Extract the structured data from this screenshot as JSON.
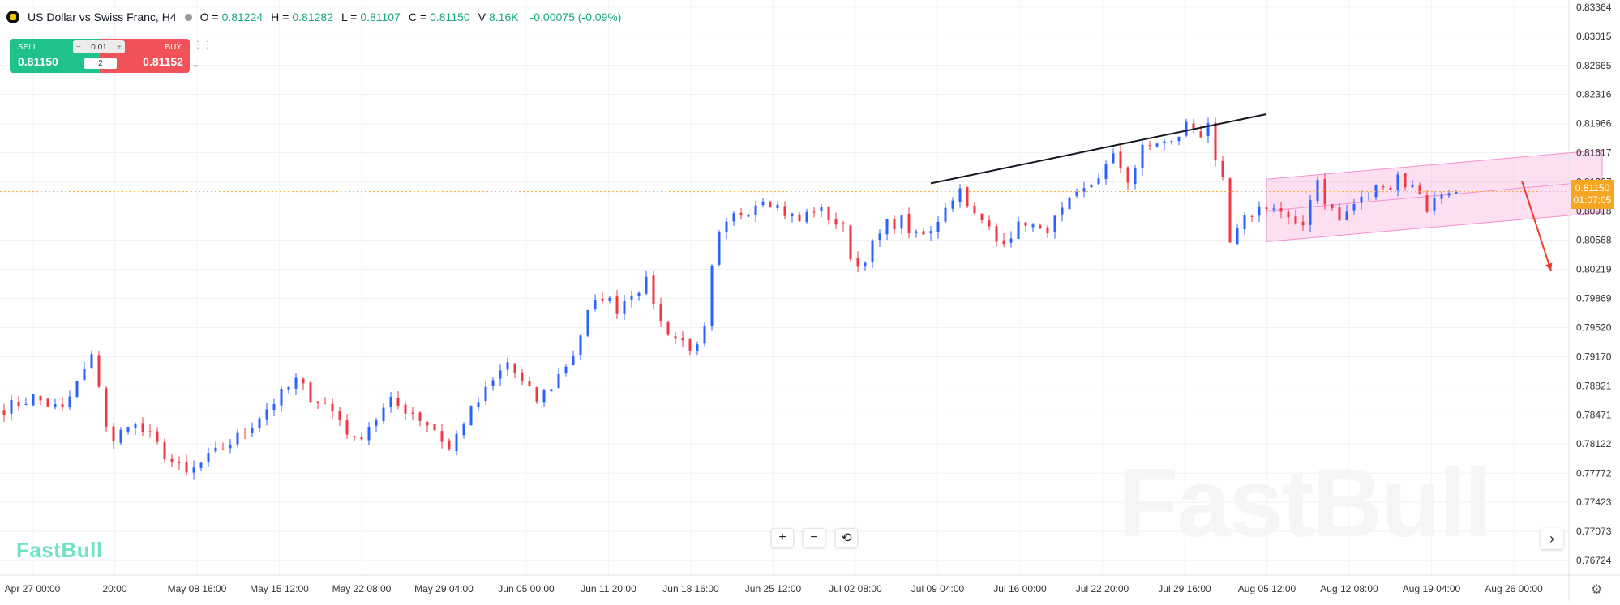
{
  "header": {
    "symbol": "US Dollar vs Swiss Franc, H4",
    "ohlc": [
      {
        "label": "O =",
        "value": "0.81224"
      },
      {
        "label": "H =",
        "value": "0.81282"
      },
      {
        "label": "L =",
        "value": "0.81107"
      },
      {
        "label": "C =",
        "value": "0.81150"
      },
      {
        "label": "V",
        "value": "8.16K"
      }
    ],
    "change": "-0.00075 (-0.09%)"
  },
  "trade_panel": {
    "sell_label": "SELL",
    "sell_price": "0.81150",
    "buy_label": "BUY",
    "buy_price": "0.81152",
    "quantity": "0.01",
    "leverage": "2",
    "minus": "−",
    "plus": "+"
  },
  "last_price": {
    "price": "0.81150",
    "countdown": "01:07:05"
  },
  "brand": {
    "logo": "FastBull",
    "watermark": "FastBull"
  },
  "toolbar": {
    "zoom_in": "+",
    "zoom_out": "−",
    "reset": "⟲",
    "next": "›",
    "settings": "⚙"
  },
  "colors": {
    "up": "#2962ff",
    "down": "#f23645",
    "channel": "#f48fd1",
    "trendline": "#131722",
    "arrow": "#ef3b2c",
    "last_price": "#f5a623"
  },
  "chart_data": {
    "type": "candlestick",
    "title": "US Dollar vs Swiss Franc, H4",
    "ylim": [
      0.7655,
      0.8345
    ],
    "y_ticks": [
      "0.83364",
      "0.83015",
      "0.82665",
      "0.82316",
      "0.81966",
      "0.81617",
      "0.81267",
      "0.80918",
      "0.80568",
      "0.80219",
      "0.79869",
      "0.79520",
      "0.79170",
      "0.78821",
      "0.78471",
      "0.78122",
      "0.77772",
      "0.77423",
      "0.77073",
      "0.76724"
    ],
    "x_ticks": [
      "Apr 27 00:00",
      "20:00",
      "May 08 16:00",
      "May 15 12:00",
      "May 22 08:00",
      "May 29 04:00",
      "Jun 05 00:00",
      "Jun 11 20:00",
      "Jun 18 16:00",
      "Jun 25 12:00",
      "Jul 02 08:00",
      "Jul 09 04:00",
      "Jul 16 00:00",
      "Jul 22 20:00",
      "Jul 29 16:00",
      "Aug 05 12:00",
      "Aug 12 08:00",
      "Aug 19 04:00",
      "Aug 26 00:00"
    ],
    "last_price": 0.8115,
    "price_path": [
      [
        0,
        0.7855
      ],
      [
        4,
        0.7868
      ],
      [
        8,
        0.7852
      ],
      [
        10,
        0.7885
      ],
      [
        12,
        0.7915
      ],
      [
        13,
        0.7885
      ],
      [
        14,
        0.7835
      ],
      [
        15,
        0.7812
      ],
      [
        17,
        0.784
      ],
      [
        20,
        0.782
      ],
      [
        23,
        0.779
      ],
      [
        25,
        0.7775
      ],
      [
        28,
        0.7795
      ],
      [
        32,
        0.782
      ],
      [
        36,
        0.7855
      ],
      [
        40,
        0.7888
      ],
      [
        42,
        0.787
      ],
      [
        44,
        0.786
      ],
      [
        46,
        0.7842
      ],
      [
        48,
        0.7815
      ],
      [
        50,
        0.7835
      ],
      [
        53,
        0.7862
      ],
      [
        56,
        0.785
      ],
      [
        59,
        0.783
      ],
      [
        61,
        0.7805
      ],
      [
        63,
        0.784
      ],
      [
        66,
        0.7875
      ],
      [
        69,
        0.791
      ],
      [
        71,
        0.7885
      ],
      [
        73,
        0.7865
      ],
      [
        75,
        0.7882
      ],
      [
        78,
        0.792
      ],
      [
        80,
        0.7968
      ],
      [
        82,
        0.799
      ],
      [
        84,
        0.7975
      ],
      [
        86,
        0.7995
      ],
      [
        88,
        0.8005
      ],
      [
        89,
        0.7985
      ],
      [
        90,
        0.7958
      ],
      [
        92,
        0.794
      ],
      [
        94,
        0.793
      ],
      [
        95,
        0.7925
      ],
      [
        96,
        0.7948
      ],
      [
        97,
        0.802
      ],
      [
        98,
        0.806
      ],
      [
        100,
        0.8085
      ],
      [
        102,
        0.8095
      ],
      [
        104,
        0.811
      ],
      [
        105,
        0.8105
      ],
      [
        107,
        0.809
      ],
      [
        109,
        0.808
      ],
      [
        111,
        0.8095
      ],
      [
        113,
        0.8085
      ],
      [
        115,
        0.807
      ],
      [
        116,
        0.804
      ],
      [
        117,
        0.8025
      ],
      [
        119,
        0.805
      ],
      [
        121,
        0.8075
      ],
      [
        123,
        0.808
      ],
      [
        125,
        0.806
      ],
      [
        127,
        0.8065
      ],
      [
        129,
        0.81
      ],
      [
        131,
        0.8118
      ],
      [
        132,
        0.8105
      ],
      [
        133,
        0.8085
      ],
      [
        135,
        0.807
      ],
      [
        136,
        0.8055
      ],
      [
        138,
        0.8065
      ],
      [
        140,
        0.808
      ],
      [
        142,
        0.8065
      ],
      [
        144,
        0.808
      ],
      [
        146,
        0.81
      ],
      [
        148,
        0.8115
      ],
      [
        150,
        0.8135
      ],
      [
        152,
        0.8155
      ],
      [
        153,
        0.8145
      ],
      [
        154,
        0.813
      ],
      [
        155,
        0.8145
      ],
      [
        156,
        0.8165
      ],
      [
        158,
        0.8175
      ],
      [
        160,
        0.8172
      ],
      [
        162,
        0.8195
      ],
      [
        164,
        0.8185
      ],
      [
        165,
        0.82
      ],
      [
        166,
        0.8145
      ],
      [
        167,
        0.8125
      ],
      [
        168,
        0.8052
      ],
      [
        169,
        0.8065
      ],
      [
        170,
        0.808
      ],
      [
        171,
        0.809
      ],
      [
        173,
        0.81
      ],
      [
        175,
        0.809
      ],
      [
        177,
        0.807
      ],
      [
        178,
        0.8075
      ],
      [
        179,
        0.811
      ],
      [
        180,
        0.813
      ],
      [
        181,
        0.8105
      ],
      [
        183,
        0.808
      ],
      [
        185,
        0.81
      ],
      [
        187,
        0.811
      ],
      [
        189,
        0.8128
      ],
      [
        190,
        0.812
      ],
      [
        191,
        0.8135
      ],
      [
        192,
        0.8125
      ],
      [
        194,
        0.8115
      ],
      [
        195,
        0.8095
      ],
      [
        196,
        0.8105
      ],
      [
        198,
        0.812
      ],
      [
        199,
        0.8115
      ]
    ],
    "trendline": {
      "from": [
        127,
        0.8125
      ],
      "to": [
        173,
        0.8208
      ]
    },
    "channel": {
      "top": [
        [
          173,
          0.813
        ],
        [
          219,
          0.8165
        ]
      ],
      "bottom": [
        [
          173,
          0.8055
        ],
        [
          219,
          0.809
        ]
      ],
      "mid": [
        [
          173,
          0.8092
        ],
        [
          219,
          0.8128
        ]
      ]
    },
    "arrow": {
      "from": [
        208,
        0.8128
      ],
      "to": [
        212,
        0.802
      ]
    }
  }
}
